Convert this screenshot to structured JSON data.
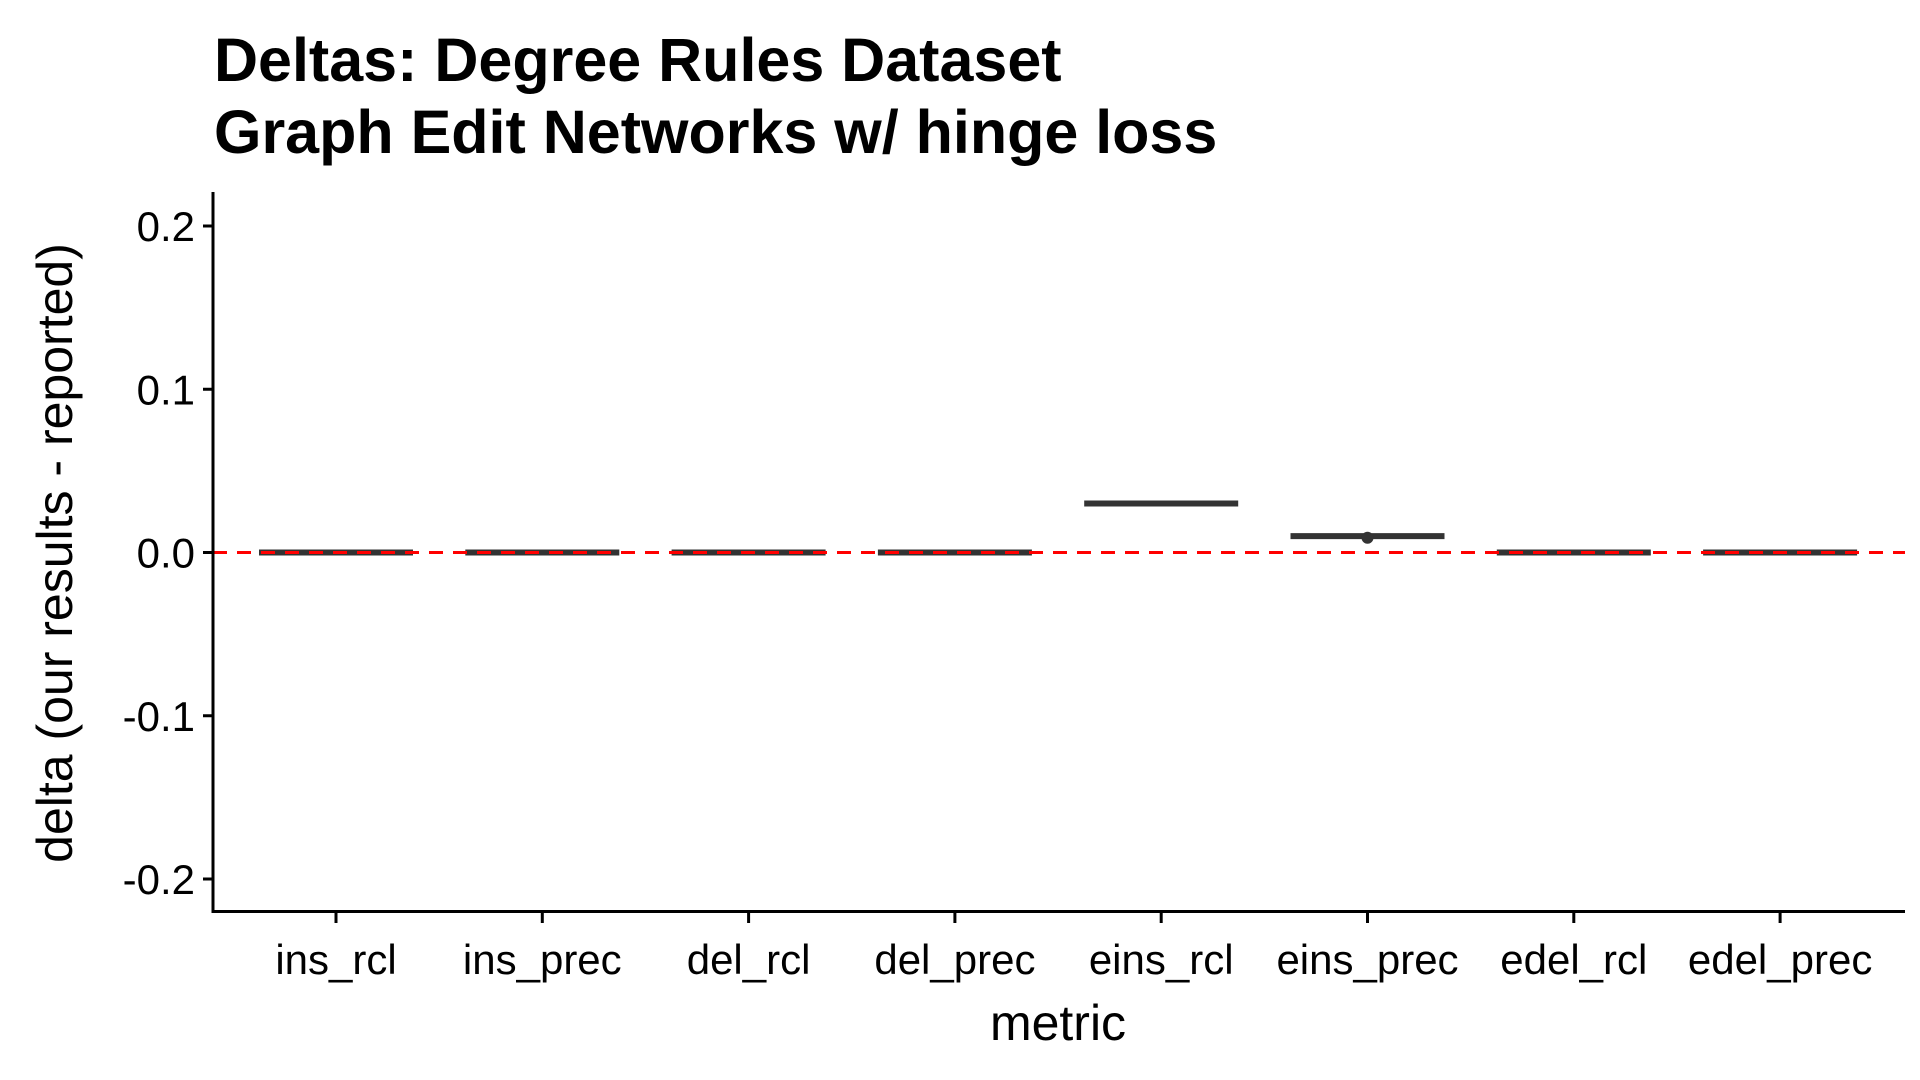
{
  "chart_data": {
    "type": "box",
    "title": "Deltas: Degree Rules Dataset",
    "subtitle": "Graph Edit Networks w/ hinge loss",
    "xlabel": "metric",
    "ylabel": "delta (our results - reported)",
    "categories": [
      "ins_rcl",
      "ins_prec",
      "del_rcl",
      "del_prec",
      "eins_rcl",
      "eins_prec",
      "edel_rcl",
      "edel_prec"
    ],
    "values": [
      0,
      0,
      0,
      0,
      0.03,
      0.01,
      0,
      0
    ],
    "outliers": [
      {
        "category": "eins_prec",
        "value": 0.009
      }
    ],
    "ylim": [
      -0.22,
      0.22
    ],
    "yticks": [
      0.2,
      0.1,
      0.0,
      -0.1,
      -0.2
    ],
    "ytick_labels": [
      "0.2",
      "0.1",
      "0.0",
      "-0.1",
      "-0.2"
    ],
    "reference_line": {
      "value": 0,
      "style": "dashed",
      "color": "#ff0000"
    },
    "box_color": "#333333",
    "grid": false,
    "legend": "none"
  }
}
